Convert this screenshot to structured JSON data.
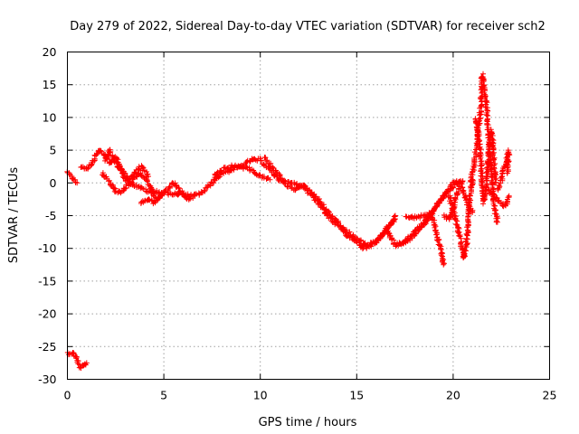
{
  "chart_data": {
    "type": "scatter",
    "title": "Day 279 of 2022, Sidereal Day-to-day VTEC variation (SDTVAR) for receiver sch2",
    "xlabel": "GPS time / hours",
    "ylabel": "SDTVAR / TECUs",
    "xlim": [
      0,
      25
    ],
    "ylim": [
      -30,
      20
    ],
    "x_ticks": [
      0,
      5,
      10,
      15,
      20,
      25
    ],
    "y_ticks": [
      -30,
      -25,
      -20,
      -15,
      -10,
      -5,
      0,
      5,
      10,
      15,
      20
    ],
    "grid": true,
    "marker": "+",
    "series": [
      {
        "name": "SDTVAR",
        "color": "#ff0000",
        "trace_segments": [
          {
            "name": "low-cluster",
            "points": [
              [
                0.0,
                -26.0
              ],
              [
                0.25,
                -26.0
              ],
              [
                0.45,
                -26.5
              ],
              [
                0.55,
                -27.5
              ],
              [
                0.65,
                -28.2
              ],
              [
                0.8,
                -28.0
              ],
              [
                1.0,
                -27.5
              ]
            ]
          },
          {
            "name": "start",
            "points": [
              [
                0.0,
                1.5
              ],
              [
                0.2,
                1.0
              ],
              [
                0.35,
                0.5
              ],
              [
                0.5,
                0.0
              ]
            ]
          },
          {
            "name": "main-a",
            "points": [
              [
                0.7,
                2.5
              ],
              [
                1.0,
                2.2
              ],
              [
                1.3,
                3.0
              ],
              [
                1.5,
                4.5
              ],
              [
                1.7,
                5.0
              ],
              [
                2.0,
                4.0
              ],
              [
                2.2,
                3.0
              ],
              [
                2.5,
                4.0
              ],
              [
                2.8,
                2.0
              ],
              [
                3.0,
                0.5
              ],
              [
                3.3,
                0.0
              ],
              [
                3.6,
                -0.5
              ],
              [
                4.0,
                -1.0
              ],
              [
                4.3,
                -1.5
              ],
              [
                4.6,
                -1.3
              ],
              [
                5.0,
                -1.5
              ],
              [
                5.5,
                -1.7
              ],
              [
                6.0,
                -1.8
              ],
              [
                6.5,
                -2.0
              ],
              [
                7.0,
                -1.5
              ],
              [
                7.5,
                0.0
              ],
              [
                8.0,
                1.5
              ],
              [
                8.5,
                2.0
              ],
              [
                9.0,
                2.5
              ],
              [
                9.5,
                3.5
              ],
              [
                10.0,
                3.5
              ],
              [
                10.5,
                2.0
              ],
              [
                11.0,
                0.5
              ],
              [
                11.5,
                0.0
              ],
              [
                12.0,
                -0.2
              ],
              [
                12.5,
                -1.0
              ],
              [
                13.0,
                -2.5
              ],
              [
                13.5,
                -4.5
              ],
              [
                14.0,
                -6.0
              ],
              [
                14.5,
                -8.0
              ],
              [
                15.0,
                -9.0
              ],
              [
                15.4,
                -10.0
              ],
              [
                15.8,
                -9.5
              ],
              [
                16.2,
                -8.5
              ],
              [
                16.7,
                -6.5
              ],
              [
                17.0,
                -5.5
              ]
            ]
          },
          {
            "name": "loop-a",
            "points": [
              [
                1.8,
                1.5
              ],
              [
                2.2,
                0.0
              ],
              [
                2.5,
                -1.2
              ],
              [
                2.8,
                -1.5
              ],
              [
                3.1,
                -0.5
              ],
              [
                3.4,
                0.5
              ],
              [
                3.7,
                1.5
              ],
              [
                4.0,
                1.0
              ],
              [
                4.3,
                -0.5
              ],
              [
                4.6,
                -2.5
              ],
              [
                4.9,
                -2.0
              ]
            ]
          },
          {
            "name": "loop-b",
            "points": [
              [
                3.8,
                -3.0
              ],
              [
                4.2,
                -2.5
              ],
              [
                4.5,
                -3.0
              ],
              [
                4.8,
                -2.0
              ],
              [
                5.2,
                -1.0
              ],
              [
                5.5,
                0.0
              ],
              [
                5.8,
                -1.0
              ],
              [
                6.2,
                -2.5
              ],
              [
                6.6,
                -2.0
              ]
            ]
          },
          {
            "name": "arc-b",
            "points": [
              [
                7.6,
                1.0
              ],
              [
                8.0,
                2.0
              ],
              [
                8.5,
                2.5
              ],
              [
                9.0,
                2.5
              ],
              [
                9.5,
                2.0
              ],
              [
                10.0,
                1.0
              ],
              [
                10.5,
                0.5
              ]
            ]
          },
          {
            "name": "spike-b",
            "points": [
              [
                2.0,
                3.5
              ],
              [
                2.2,
                5.0
              ],
              [
                2.5,
                3.0
              ],
              [
                3.2,
                0.5
              ],
              [
                3.8,
                2.5
              ],
              [
                4.2,
                1.0
              ]
            ]
          },
          {
            "name": "dip-c",
            "points": [
              [
                10.2,
                3.8
              ],
              [
                10.6,
                2.5
              ],
              [
                11.0,
                1.0
              ],
              [
                11.4,
                -0.5
              ],
              [
                11.8,
                -1.0
              ],
              [
                12.2,
                -0.3
              ],
              [
                12.5,
                -1.5
              ],
              [
                13.0,
                -3.0
              ],
              [
                13.5,
                -5.0
              ],
              [
                14.0,
                -6.5
              ],
              [
                14.5,
                -7.5
              ],
              [
                15.0,
                -8.5
              ],
              [
                15.5,
                -9.5
              ],
              [
                16.0,
                -9.0
              ],
              [
                16.5,
                -7.5
              ],
              [
                17.0,
                -5.0
              ]
            ]
          },
          {
            "name": "diag-a",
            "points": [
              [
                16.5,
                -7.0
              ],
              [
                17.0,
                -9.5
              ],
              [
                17.5,
                -9.0
              ],
              [
                18.0,
                -7.5
              ],
              [
                18.5,
                -6.0
              ],
              [
                19.0,
                -4.0
              ],
              [
                19.5,
                -2.0
              ],
              [
                20.0,
                0.0
              ],
              [
                20.5,
                0.3
              ]
            ]
          },
          {
            "name": "diag-b",
            "points": [
              [
                17.2,
                -9.5
              ],
              [
                17.8,
                -8.5
              ],
              [
                18.3,
                -7.0
              ],
              [
                18.8,
                -5.0
              ],
              [
                19.3,
                -3.0
              ],
              [
                19.8,
                -1.0
              ],
              [
                20.3,
                0.0
              ]
            ]
          },
          {
            "name": "drop-19",
            "points": [
              [
                17.5,
                -5.0
              ],
              [
                18.0,
                -5.3
              ],
              [
                18.5,
                -5.0
              ],
              [
                18.8,
                -4.5
              ],
              [
                19.0,
                -6.0
              ],
              [
                19.2,
                -8.5
              ],
              [
                19.4,
                -10.5
              ],
              [
                19.5,
                -12.5
              ]
            ]
          },
          {
            "name": "drop-20",
            "points": [
              [
                19.8,
                -2.0
              ],
              [
                20.0,
                -4.0
              ],
              [
                20.2,
                -6.5
              ],
              [
                20.4,
                -9.0
              ],
              [
                20.55,
                -11.5
              ],
              [
                20.7,
                -9.0
              ],
              [
                20.8,
                -5.0
              ],
              [
                20.9,
                -1.0
              ],
              [
                21.0,
                0.5
              ]
            ]
          },
          {
            "name": "mid-20",
            "points": [
              [
                19.5,
                -5.0
              ],
              [
                19.8,
                -5.5
              ],
              [
                20.0,
                -4.0
              ],
              [
                20.2,
                -1.5
              ],
              [
                20.4,
                0.0
              ],
              [
                20.6,
                -2.0
              ],
              [
                20.8,
                -3.5
              ],
              [
                21.0,
                -4.5
              ]
            ]
          },
          {
            "name": "spike-21",
            "points": [
              [
                20.9,
                0.0
              ],
              [
                21.1,
                3.0
              ],
              [
                21.3,
                8.0
              ],
              [
                21.45,
                12.0
              ],
              [
                21.5,
                16.5
              ],
              [
                21.6,
                15.0
              ],
              [
                21.7,
                12.5
              ],
              [
                21.8,
                9.0
              ],
              [
                21.9,
                5.0
              ],
              [
                22.0,
                1.0
              ],
              [
                22.1,
                -3.0
              ],
              [
                22.2,
                -4.5
              ],
              [
                22.3,
                -6.0
              ]
            ]
          },
          {
            "name": "band-21",
            "points": [
              [
                21.2,
                10.0
              ],
              [
                21.4,
                5.0
              ],
              [
                21.5,
                0.0
              ],
              [
                21.6,
                -3.0
              ],
              [
                21.7,
                -1.0
              ],
              [
                21.8,
                3.0
              ],
              [
                21.9,
                7.0
              ],
              [
                22.0,
                8.0
              ],
              [
                22.1,
                4.0
              ],
              [
                22.2,
                0.0
              ]
            ]
          },
          {
            "name": "tail-22",
            "points": [
              [
                22.3,
                -1.0
              ],
              [
                22.5,
                0.5
              ],
              [
                22.7,
                3.0
              ],
              [
                22.9,
                5.0
              ],
              [
                22.8,
                1.5
              ]
            ]
          },
          {
            "name": "tail-22b",
            "points": [
              [
                21.8,
                -1.0
              ],
              [
                22.1,
                -2.0
              ],
              [
                22.4,
                -3.0
              ],
              [
                22.7,
                -3.5
              ],
              [
                22.9,
                -2.0
              ]
            ]
          }
        ]
      }
    ]
  }
}
